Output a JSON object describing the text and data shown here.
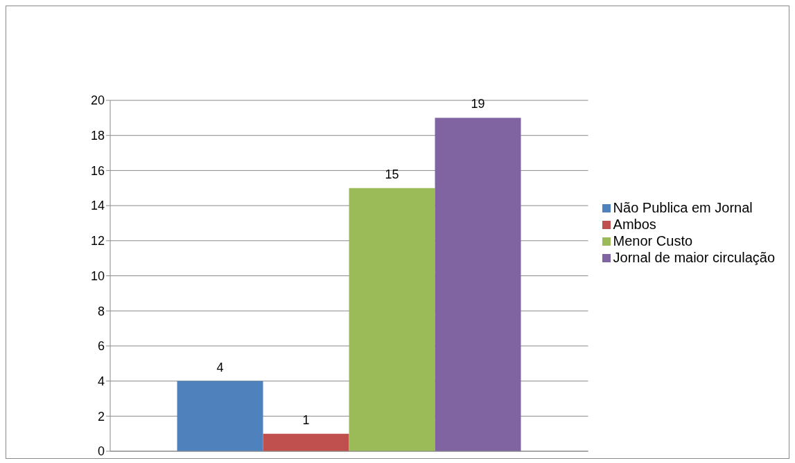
{
  "chart_data": {
    "type": "bar",
    "categories": [
      null
    ],
    "series": [
      {
        "name": "Não Publica em Jornal",
        "color": "#4f81bd",
        "values": [
          4
        ]
      },
      {
        "name": "Ambos",
        "color": "#c0504d",
        "values": [
          1
        ]
      },
      {
        "name": "Menor Custo",
        "color": "#9bbb59",
        "values": [
          15
        ]
      },
      {
        "name": "Jornal de maior circulação",
        "color": "#8064a2",
        "values": [
          19
        ]
      }
    ],
    "ylim": [
      0,
      20
    ],
    "yticks": [
      0,
      2,
      4,
      6,
      8,
      10,
      12,
      14,
      16,
      18,
      20
    ],
    "grid": "y",
    "legend": "right",
    "data_labels": true
  }
}
